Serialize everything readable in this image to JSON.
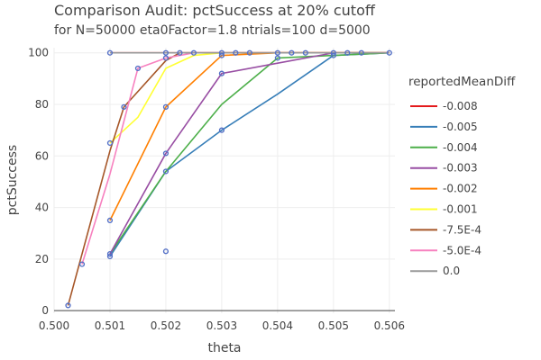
{
  "chart_data": {
    "type": "line",
    "title": "Comparison Audit: pctSuccess at 20% cutoff",
    "subtitle": "for N=50000 eta0Factor=1.8 ntrials=100 d=5000",
    "xlabel": "theta",
    "ylabel": "pctSuccess",
    "xlim": [
      0.5,
      0.5061
    ],
    "ylim": [
      -1,
      102
    ],
    "x_ticks": [
      "0.500",
      "0.501",
      "0.502",
      "0.503",
      "0.504",
      "0.505",
      "0.506"
    ],
    "x_tick_values": [
      0.5,
      0.501,
      0.502,
      0.503,
      0.504,
      0.505,
      0.506
    ],
    "y_ticks": [
      "0",
      "20",
      "40",
      "60",
      "80",
      "100"
    ],
    "y_tick_values": [
      0,
      20,
      40,
      60,
      80,
      100
    ],
    "grid": true,
    "legend_title": "reportedMeanDiff",
    "legend_position": "right",
    "marker_color": "#5470c6",
    "series": [
      {
        "name": "-0.008",
        "color": "#e41a1c",
        "x": [
          0.501,
          0.502,
          0.5025,
          0.503,
          0.504,
          0.505,
          0.506
        ],
        "y": [
          100,
          100,
          100,
          100,
          100,
          100,
          100
        ]
      },
      {
        "name": "-0.005",
        "color": "#377eb8",
        "x": [
          0.501,
          0.502,
          0.503,
          0.504,
          0.505,
          0.506
        ],
        "y": [
          21,
          54,
          70,
          84,
          99,
          100
        ]
      },
      {
        "name": "-0.004",
        "color": "#4daf4a",
        "x": [
          0.501,
          0.502,
          0.503,
          0.504,
          0.505,
          0.506
        ],
        "y": [
          22,
          54,
          80,
          98,
          99,
          100
        ]
      },
      {
        "name": "-0.003",
        "color": "#984ea3",
        "x": [
          0.501,
          0.502,
          0.503,
          0.504,
          0.505,
          0.506
        ],
        "y": [
          22,
          61,
          92,
          96,
          100,
          100
        ]
      },
      {
        "name": "-0.002",
        "color": "#ff7f00",
        "x": [
          0.501,
          0.502,
          0.503,
          0.504,
          0.505,
          0.506
        ],
        "y": [
          35,
          79,
          99,
          100,
          100,
          100
        ]
      },
      {
        "name": "-0.001",
        "color": "#ffff33",
        "x": [
          0.501,
          0.5015,
          0.502,
          0.5025,
          0.503,
          0.504,
          0.505,
          0.506
        ],
        "y": [
          65,
          75,
          94,
          99,
          100,
          100,
          100,
          100
        ]
      },
      {
        "name": "-7.5E-4",
        "color": "#a65628",
        "x": [
          0.50025,
          0.501,
          0.50125,
          0.502,
          0.50225,
          0.5025,
          0.503,
          0.504,
          0.505,
          0.506
        ],
        "y": [
          2,
          62,
          79,
          97,
          100,
          100,
          100,
          100,
          100,
          100
        ]
      },
      {
        "name": "-5.0E-4",
        "color": "#f781bf",
        "x": [
          0.5005,
          0.501,
          0.5015,
          0.502,
          0.5025,
          0.503,
          0.5035,
          0.504,
          0.5045,
          0.505,
          0.5055,
          0.506
        ],
        "y": [
          18,
          53,
          94,
          98,
          100,
          100,
          100,
          100,
          100,
          100,
          100,
          100
        ]
      },
      {
        "name": "0.0",
        "color": "#999999",
        "x": [
          0.501,
          0.502,
          0.50225,
          0.5025,
          0.503,
          0.50325,
          0.5035,
          0.504,
          0.50425,
          0.5045,
          0.505,
          0.50525,
          0.5055,
          0.506
        ],
        "y": [
          100,
          100,
          100,
          100,
          100,
          100,
          100,
          100,
          100,
          100,
          100,
          100,
          100,
          100
        ]
      }
    ],
    "markers": [
      [
        0.50025,
        2
      ],
      [
        0.5005,
        18
      ],
      [
        0.501,
        21
      ],
      [
        0.501,
        22
      ],
      [
        0.501,
        35
      ],
      [
        0.501,
        65
      ],
      [
        0.501,
        100
      ],
      [
        0.50125,
        79
      ],
      [
        0.5015,
        94
      ],
      [
        0.502,
        23
      ],
      [
        0.502,
        54
      ],
      [
        0.502,
        61
      ],
      [
        0.502,
        79
      ],
      [
        0.502,
        98
      ],
      [
        0.502,
        100
      ],
      [
        0.50225,
        100
      ],
      [
        0.5025,
        100
      ],
      [
        0.503,
        70
      ],
      [
        0.503,
        92
      ],
      [
        0.503,
        99
      ],
      [
        0.503,
        100
      ],
      [
        0.50325,
        100
      ],
      [
        0.5035,
        100
      ],
      [
        0.504,
        98
      ],
      [
        0.504,
        100
      ],
      [
        0.50425,
        100
      ],
      [
        0.5045,
        100
      ],
      [
        0.505,
        99
      ],
      [
        0.505,
        100
      ],
      [
        0.50525,
        100
      ],
      [
        0.5055,
        100
      ],
      [
        0.506,
        100
      ]
    ]
  }
}
